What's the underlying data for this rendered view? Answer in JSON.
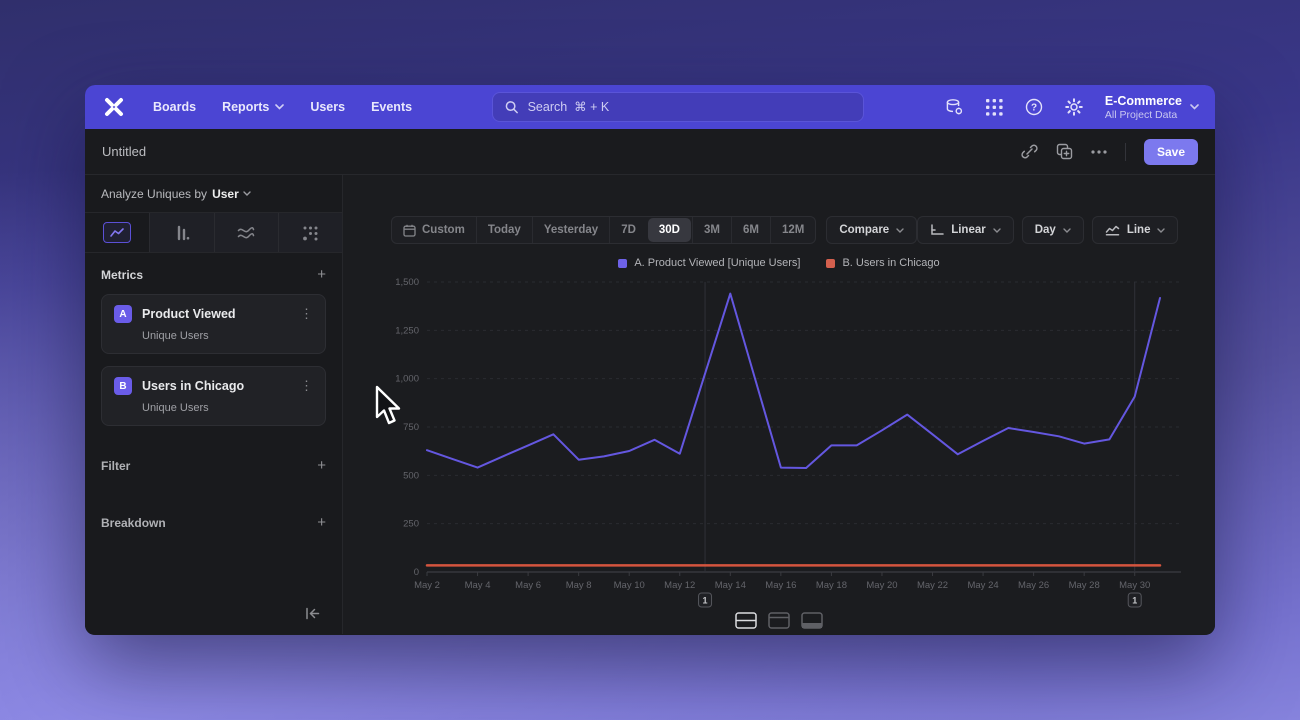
{
  "topnav": {
    "items": [
      "Boards",
      "Reports",
      "Users",
      "Events"
    ],
    "search": {
      "placeholder": "Search  ⌘ + K"
    },
    "project": {
      "name": "E-Commerce",
      "subtitle": "All Project Data"
    }
  },
  "report_header": {
    "title": "Untitled",
    "save_label": "Save"
  },
  "sidebar": {
    "analyze": {
      "label": "Analyze Uniques by",
      "value": "User"
    },
    "metrics": {
      "title": "Metrics",
      "items": [
        {
          "badge": "A",
          "name": "Product Viewed",
          "subtitle": "Unique Users"
        },
        {
          "badge": "B",
          "name": "Users in Chicago",
          "subtitle": "Unique Users"
        }
      ]
    },
    "filter": {
      "title": "Filter"
    },
    "breakdown": {
      "title": "Breakdown"
    }
  },
  "toolbar": {
    "date_ranges": [
      "Custom",
      "Today",
      "Yesterday",
      "7D",
      "30D",
      "3M",
      "6M",
      "12M"
    ],
    "selected_range": "30D",
    "compare_label": "Compare",
    "scale_label": "Linear",
    "interval_label": "Day",
    "chart_type_label": "Line"
  },
  "chart_data": {
    "type": "line",
    "title": "",
    "xlabel": "",
    "ylabel": "",
    "ylim": [
      0,
      1500
    ],
    "grid": "horizontal-dashed",
    "legend_position": "top-center",
    "x": [
      "May 2",
      "May 3",
      "May 4",
      "May 5",
      "May 6",
      "May 7",
      "May 8",
      "May 9",
      "May 10",
      "May 11",
      "May 12",
      "May 13",
      "May 14",
      "May 15",
      "May 16",
      "May 17",
      "May 18",
      "May 19",
      "May 20",
      "May 21",
      "May 22",
      "May 23",
      "May 24",
      "May 25",
      "May 26",
      "May 27",
      "May 28",
      "May 29",
      "May 30",
      "May 31"
    ],
    "y_ticks": [
      {
        "value": 0,
        "label": "0"
      },
      {
        "value": 250,
        "label": "250"
      },
      {
        "value": 500,
        "label": "500"
      },
      {
        "value": 750,
        "label": "750"
      },
      {
        "value": 1000,
        "label": "1,000"
      },
      {
        "value": 1250,
        "label": "1,250"
      },
      {
        "value": 1500,
        "label": "1,500"
      }
    ],
    "series": [
      {
        "name": "A. Product Viewed [Unique Users]",
        "color": "#6457e0",
        "values": [
          630,
          585,
          540,
          598,
          655,
          712,
          581,
          598,
          626,
          684,
          612,
          1025,
          1440,
          990,
          540,
          538,
          655,
          655,
          733,
          814,
          712,
          609,
          678,
          745,
          724,
          702,
          664,
          686,
          907,
          1417
        ]
      },
      {
        "name": "B. Users in Chicago",
        "color": "#d4543e",
        "values": [
          34,
          34,
          34,
          34,
          34,
          34,
          34,
          34,
          34,
          34,
          34,
          34,
          34,
          34,
          34,
          34,
          34,
          34,
          34,
          34,
          34,
          34,
          34,
          34,
          34,
          34,
          34,
          34,
          34,
          34
        ]
      }
    ],
    "annotations": [
      {
        "label": "1",
        "x_index": 11
      },
      {
        "label": "1",
        "x_index": 28
      }
    ]
  },
  "colors": {
    "nav_bg": "#4b45d3",
    "save_button": "#7c79ee",
    "series_a": "#6457e0",
    "series_b": "#d4543e",
    "selected_tab_border": "#5b50d6"
  }
}
